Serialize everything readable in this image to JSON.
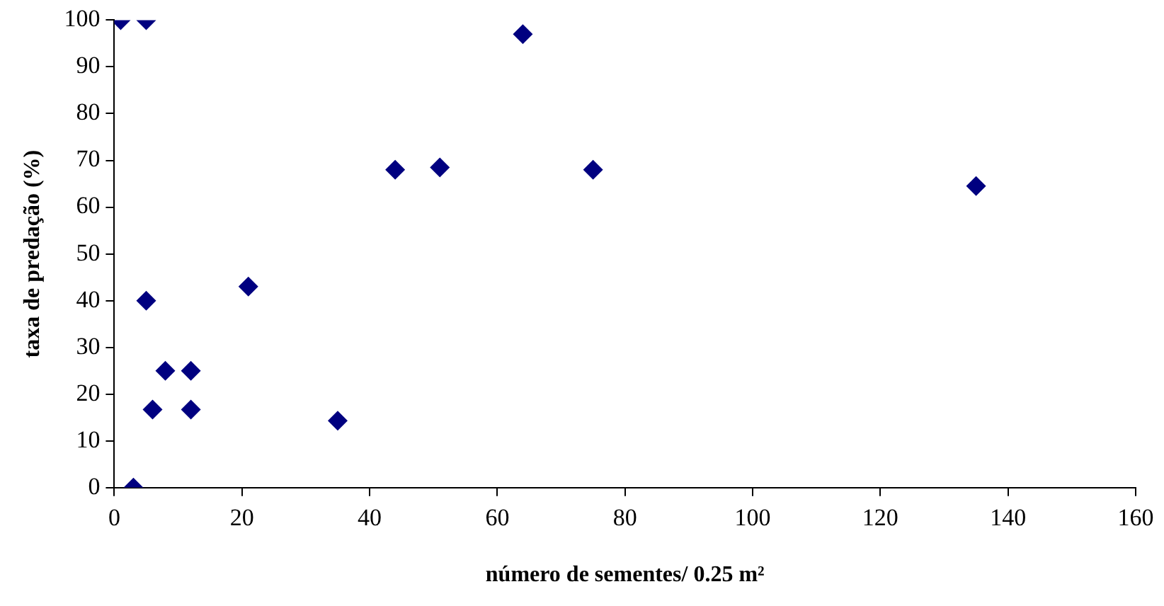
{
  "chart_data": {
    "type": "scatter",
    "xlabel": "número de sementes/ 0.25 m²",
    "ylabel": "taxa de predação (%)",
    "x": [
      1,
      5,
      64,
      44,
      51,
      75,
      135,
      21,
      5,
      8,
      12,
      6,
      12,
      35,
      3
    ],
    "series": [
      {
        "color": "#000080",
        "values": [
          100,
          100,
          97,
          68,
          68.5,
          68,
          64.5,
          43,
          40,
          25,
          25,
          16.7,
          16.7,
          14.3,
          0
        ]
      }
    ],
    "xlim": [
      0,
      160
    ],
    "xticks": [
      0,
      20,
      40,
      60,
      80,
      100,
      120,
      140,
      160
    ],
    "ylim": [
      0,
      100
    ],
    "yticks": [
      0,
      10,
      20,
      30,
      40,
      50,
      60,
      70,
      80,
      90,
      100
    ],
    "grid": false,
    "legend": false,
    "marker": "diamond"
  }
}
